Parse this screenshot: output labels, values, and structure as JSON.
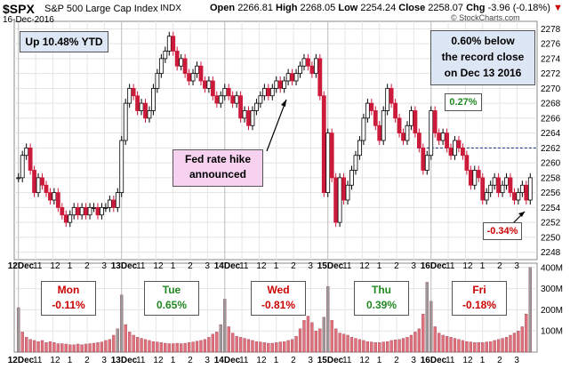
{
  "header": {
    "symbol": "$SPX",
    "name": "S&P 500 Large Cap Index",
    "exchange": "INDX",
    "date": "16-Dec-2016",
    "open_label": "Open",
    "open": "2266.81",
    "high_label": "High",
    "high": "2268.05",
    "low_label": "Low",
    "low": "2254.24",
    "close_label": "Close",
    "close": "2258.07",
    "chg_label": "Chg",
    "chg": "-3.96 (-0.18%)",
    "watermark": "© StockCharts.com"
  },
  "annotations": {
    "ytd": "Up 10.48% YTD",
    "record": [
      "0.60% below",
      "the record close",
      "on Dec 13 2016"
    ],
    "fed": [
      "Fed rate hike",
      "announced"
    ],
    "pct_up": "0.27%",
    "pct_down": "-0.34%"
  },
  "day_boxes": [
    {
      "day": "Mon",
      "change": "-0.11%",
      "color": "#cc0000"
    },
    {
      "day": "Tue",
      "change": "0.65%",
      "color": "#228822"
    },
    {
      "day": "Wed",
      "change": "-0.81%",
      "color": "#cc0000"
    },
    {
      "day": "Thu",
      "change": "0.39%",
      "color": "#228822"
    },
    {
      "day": "Fri",
      "change": "-0.18%",
      "color": "#cc0000"
    }
  ],
  "colors": {
    "up": "#000000",
    "down": "#cc1a3a",
    "vol_down": "#e0707c",
    "vol_up": "#999999",
    "record_line": "#1a2f8c"
  },
  "chart_data": {
    "type": "candlestick",
    "price_ylim": [
      2247,
      2279
    ],
    "price_ticks": [
      2248,
      2250,
      2252,
      2254,
      2256,
      2258,
      2260,
      2262,
      2264,
      2266,
      2268,
      2270,
      2272,
      2274,
      2276,
      2278
    ],
    "volume_ticks": [
      {
        "v": 100,
        "label": "100M"
      },
      {
        "v": 200,
        "label": "200M"
      },
      {
        "v": 300,
        "label": "300M"
      },
      {
        "v": 400,
        "label": "400M"
      }
    ],
    "volume_ylim": [
      0,
      420
    ],
    "record_close": 2262,
    "x_labels": [
      {
        "i": 0,
        "t": "12Dec"
      },
      {
        "i": 13,
        "t": "11"
      },
      {
        "i": 26,
        "t": "12"
      },
      {
        "i": 39,
        "t": "1"
      },
      {
        "i": 52,
        "t": "2"
      },
      {
        "i": 65,
        "t": "3"
      },
      {
        "i": 78,
        "t": "13Dec"
      },
      {
        "i": 91,
        "t": "11"
      },
      {
        "i": 104,
        "t": "12"
      },
      {
        "i": 117,
        "t": "1"
      },
      {
        "i": 130,
        "t": "2"
      },
      {
        "i": 143,
        "t": "3"
      },
      {
        "i": 156,
        "t": "14Dec"
      },
      {
        "i": 169,
        "t": "11"
      },
      {
        "i": 182,
        "t": "12"
      },
      {
        "i": 195,
        "t": "1"
      },
      {
        "i": 208,
        "t": "2"
      },
      {
        "i": 221,
        "t": "3"
      },
      {
        "i": 234,
        "t": "15Dec"
      },
      {
        "i": 247,
        "t": "11"
      },
      {
        "i": 260,
        "t": "12"
      },
      {
        "i": 273,
        "t": "1"
      },
      {
        "i": 286,
        "t": "2"
      },
      {
        "i": 299,
        "t": "3"
      },
      {
        "i": 312,
        "t": "16Dec"
      },
      {
        "i": 325,
        "t": "11"
      },
      {
        "i": 338,
        "t": "12"
      },
      {
        "i": 351,
        "t": "1"
      },
      {
        "i": 364,
        "t": "2"
      },
      {
        "i": 377,
        "t": "3"
      }
    ],
    "day_starts": [
      0,
      78,
      156,
      234,
      312
    ],
    "bars_per_day": 78,
    "closes": [
      [
        2258,
        2261,
        2262,
        2259,
        2256,
        2258,
        2257,
        2256,
        2255,
        2256,
        2254,
        2253,
        2252,
        2253,
        2254,
        2253,
        2254,
        2253,
        2254,
        2254,
        2253,
        2254,
        2254,
        2255,
        2254,
        2256
      ],
      [
        2263,
        2268,
        2270,
        2269,
        2267,
        2268,
        2266,
        2267,
        2270,
        2272,
        2274,
        2275,
        2277,
        2275,
        2273,
        2274,
        2272,
        2271,
        2272,
        2273,
        2271,
        2270,
        2271,
        2269,
        2268,
        2269
      ],
      [
        2270,
        2269,
        2268,
        2269,
        2266,
        2267,
        2265,
        2267,
        2268,
        2269,
        2270,
        2269,
        2270,
        2271,
        2270,
        2271,
        2272,
        2271,
        2272,
        2273,
        2274,
        2273,
        2272,
        2274,
        2269,
        2256
      ],
      [
        2264,
        2258,
        2252,
        2258,
        2255,
        2257,
        2259,
        2261,
        2263,
        2266,
        2268,
        2267,
        2265,
        2263,
        2267,
        2270,
        2268,
        2266,
        2264,
        2263,
        2265,
        2267,
        2264,
        2262,
        2259,
        2261
      ],
      [
        2267,
        2264,
        2263,
        2264,
        2262,
        2261,
        2263,
        2262,
        2261,
        2259,
        2257,
        2259,
        2258,
        2255,
        2256,
        2257,
        2258,
        2256,
        2257,
        2258,
        2256,
        2255,
        2256,
        2257,
        2255,
        2258
      ]
    ],
    "volumes": [
      [
        210,
        95,
        70,
        60,
        55,
        50,
        55,
        45,
        50,
        45,
        40,
        40,
        38,
        35,
        35,
        38,
        35,
        38,
        40,
        42,
        45,
        48,
        55,
        60,
        80,
        110
      ],
      [
        270,
        130,
        95,
        80,
        70,
        65,
        60,
        55,
        50,
        48,
        45,
        42,
        40,
        40,
        42,
        40,
        42,
        45,
        48,
        52,
        55,
        60,
        70,
        85,
        95,
        130
      ],
      [
        250,
        120,
        90,
        75,
        70,
        65,
        60,
        55,
        50,
        48,
        45,
        42,
        42,
        45,
        48,
        50,
        55,
        60,
        75,
        110,
        150,
        170,
        140,
        100,
        110,
        165
      ],
      [
        310,
        150,
        110,
        90,
        85,
        80,
        70,
        65,
        60,
        55,
        50,
        48,
        45,
        45,
        48,
        50,
        55,
        58,
        60,
        65,
        70,
        80,
        95,
        110,
        180,
        330
      ],
      [
        240,
        120,
        90,
        80,
        75,
        70,
        65,
        60,
        55,
        50,
        48,
        45,
        45,
        45,
        48,
        50,
        55,
        60,
        65,
        70,
        80,
        90,
        100,
        120,
        180,
        400
      ]
    ],
    "volume_up_colored": [
      0,
      78,
      234,
      312
    ]
  }
}
